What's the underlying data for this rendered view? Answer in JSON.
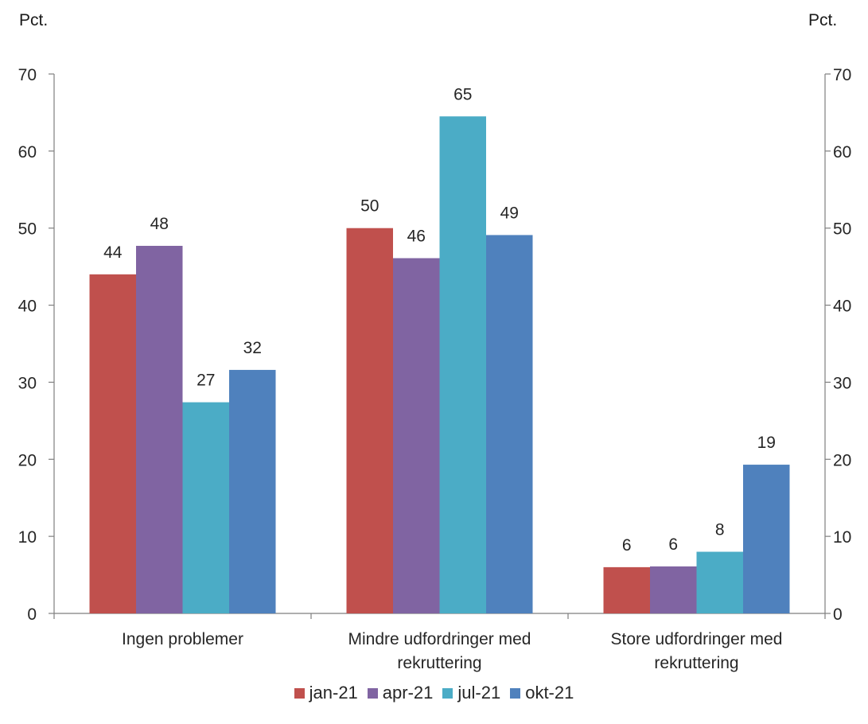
{
  "units": {
    "left": "Pct.",
    "right": "Pct."
  },
  "chart_data": {
    "type": "bar",
    "categories": [
      [
        "Ingen problemer"
      ],
      [
        "Mindre udfordringer med",
        "rekruttering"
      ],
      [
        "Store udfordringer med",
        "rekruttering"
      ]
    ],
    "series": [
      {
        "name": "jan-21",
        "color": "#c0504d",
        "values": [
          44,
          50,
          6
        ]
      },
      {
        "name": "apr-21",
        "color": "#8064a2",
        "values": [
          48,
          46,
          6
        ]
      },
      {
        "name": "jul-21",
        "color": "#4bacc6",
        "values": [
          27,
          65,
          8
        ]
      },
      {
        "name": "okt-21",
        "color": "#4f81bd",
        "values": [
          32,
          49,
          19
        ]
      }
    ],
    "precise_values": [
      [
        44.0,
        50.0,
        6.0
      ],
      [
        47.7,
        46.1,
        6.1
      ],
      [
        27.4,
        64.5,
        8.0
      ],
      [
        31.6,
        49.1,
        19.3
      ]
    ],
    "yticks": [
      "0",
      "10",
      "20",
      "30",
      "40",
      "50",
      "60",
      "70"
    ],
    "ylim": [
      0,
      70
    ],
    "legend_position": "bottom"
  }
}
